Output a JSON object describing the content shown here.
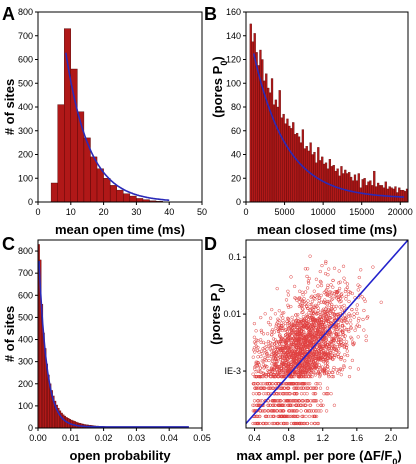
{
  "chart_data": [
    {
      "panel": "A",
      "type": "bar",
      "xlabel": "mean open time (ms)",
      "ylabel": "# of sites",
      "xlim": [
        0,
        50
      ],
      "ylim": [
        0,
        800
      ],
      "xticks": [
        "0",
        "10",
        "20",
        "30",
        "40",
        "50"
      ],
      "yticks": [
        "0",
        "100",
        "200",
        "300",
        "400",
        "500",
        "600",
        "700",
        "800"
      ],
      "bin_width": 2,
      "bins_x": [
        5,
        7,
        9,
        11,
        13,
        15,
        17,
        19,
        21,
        23,
        25,
        27,
        29,
        31,
        33,
        35,
        37
      ],
      "values": [
        80,
        410,
        730,
        560,
        380,
        270,
        190,
        140,
        100,
        70,
        50,
        35,
        25,
        15,
        10,
        5,
        3
      ],
      "fit_curve": {
        "type": "exponential",
        "amplitude": 2080,
        "tau": 7.1,
        "x_start": 8.5,
        "x_end": 40
      }
    },
    {
      "panel": "B",
      "type": "bar",
      "xlabel": "mean closed time (ms)",
      "ylabel": "(pores P",
      "ylabel_sub": "0",
      "ylabel_close": ")",
      "xlim": [
        0,
        21000
      ],
      "ylim": [
        0,
        160
      ],
      "xticks": [
        "0",
        "5000",
        "10000",
        "15000",
        "20000"
      ],
      "yticks": [
        "0",
        "20",
        "40",
        "60",
        "80",
        "100",
        "120",
        "140",
        "160"
      ],
      "bin_width": 250,
      "bin_start": 500,
      "values": [
        150,
        135,
        142,
        126,
        115,
        128,
        120,
        102,
        108,
        96,
        92,
        104,
        82,
        86,
        80,
        94,
        71,
        74,
        66,
        70,
        64,
        62,
        67,
        57,
        58,
        55,
        50,
        61,
        45,
        47,
        43,
        50,
        40,
        42,
        33,
        46,
        35,
        38,
        32,
        33,
        28,
        36,
        30,
        31,
        26,
        28,
        22,
        30,
        24,
        27,
        24,
        25,
        21,
        18,
        23,
        18,
        24,
        12,
        19,
        20,
        14,
        17,
        18,
        14,
        26,
        13,
        16,
        14,
        14,
        12,
        17,
        11,
        13,
        12,
        11,
        13,
        8,
        12,
        10,
        10,
        9,
        11,
        8,
        9,
        10,
        7,
        8,
        6,
        9,
        7,
        8,
        6,
        7,
        8,
        5,
        7,
        6,
        5,
        6,
        5,
        7,
        4,
        6,
        5,
        5,
        4,
        6,
        4,
        5,
        3,
        5,
        4,
        5,
        4,
        3,
        5,
        4,
        3,
        4,
        5,
        3,
        4,
        3,
        5,
        3,
        4,
        7,
        3,
        4,
        3,
        5,
        4,
        8,
        3,
        4,
        3,
        5,
        4,
        3,
        5,
        4,
        6,
        3,
        4,
        9,
        3,
        4,
        3,
        5,
        4,
        3,
        5,
        4,
        3,
        5,
        3,
        4,
        3,
        5,
        3,
        4,
        3,
        5,
        4,
        3,
        5,
        4,
        3,
        5,
        3,
        4,
        3,
        5,
        4,
        3,
        5,
        4,
        3,
        5,
        3,
        4,
        3,
        5,
        4,
        3,
        5,
        4,
        3,
        5,
        3,
        4,
        3,
        5,
        4,
        3,
        5,
        4,
        3,
        5,
        3,
        4,
        3,
        5,
        4,
        3,
        5,
        4,
        3,
        5,
        3,
        4,
        3,
        5,
        4,
        3,
        5,
        4,
        3,
        5,
        3,
        4,
        3,
        5,
        4,
        3,
        5,
        4,
        3,
        5,
        3,
        4,
        3,
        5,
        4,
        3,
        5,
        4,
        3,
        5,
        3,
        4,
        3,
        5,
        4,
        3,
        5
      ],
      "fit_curve": {
        "type": "exponential",
        "amplitude": 155,
        "tau": 4200,
        "offset": 3,
        "x_start": 1000,
        "x_end": 20500
      }
    },
    {
      "panel": "C",
      "type": "bar",
      "xlabel": "open probability",
      "ylabel": "# of sites",
      "xlim": [
        0,
        0.05
      ],
      "ylim": [
        0,
        850
      ],
      "xticks": [
        "0.00",
        "0.01",
        "0.02",
        "0.03",
        "0.04",
        "0.05"
      ],
      "yticks": [
        "0",
        "100",
        "200",
        "300",
        "400",
        "500",
        "600",
        "700",
        "800"
      ],
      "bin_width": 0.0005,
      "bin_start": 0,
      "values": [
        830,
        760,
        560,
        430,
        360,
        290,
        240,
        200,
        170,
        145,
        122,
        104,
        90,
        78,
        68,
        60,
        54,
        48,
        44,
        40,
        36,
        33,
        30,
        27,
        24,
        22,
        20,
        18,
        16,
        15,
        14,
        13,
        12,
        11,
        10,
        9,
        9,
        8,
        8,
        7,
        7,
        6,
        6,
        6,
        5,
        5,
        5,
        4,
        4,
        4,
        4,
        3,
        3,
        3,
        3,
        3,
        3,
        2,
        2,
        2,
        2,
        2,
        2,
        2,
        2,
        2,
        2,
        2,
        1,
        1,
        1,
        1,
        1,
        1,
        1,
        1,
        1,
        1,
        1,
        1,
        1,
        1,
        1,
        1,
        1,
        1,
        1,
        1,
        1,
        1
      ],
      "fit_curve": {
        "type": "exponential",
        "amplitude": 850,
        "tau": 0.0024,
        "offset": 5,
        "x_start": 0.0003,
        "x_end": 0.046
      }
    },
    {
      "panel": "D",
      "type": "scatter",
      "xlabel": "max  ampl. per pore (",
      "xlabel_delta": "ΔF/F",
      "xlabel_sub": "0",
      "xlabel_close": ")",
      "ylabel": "(pores P",
      "ylabel_sub": "0",
      "ylabel_close": ")",
      "log_y": true,
      "xlim": [
        0.3,
        2.2
      ],
      "ylim": [
        0.0001,
        0.2
      ],
      "xticks": [
        "0.4",
        "0.8",
        "1.2",
        "1.6",
        "2.0"
      ],
      "yticks": [
        "IE-3",
        "0.01",
        "0.1"
      ],
      "n_points": 2400,
      "fit_line": {
        "x": [
          0.3,
          2.2
        ],
        "y": [
          0.00012,
          0.2
        ]
      },
      "point_color": "#e04040",
      "line_color": "#2222cc"
    }
  ],
  "panel_labels": [
    "A",
    "B",
    "C",
    "D"
  ],
  "colors": {
    "bar": "#b01818",
    "bar_edge": "#4a0000",
    "fit": "#2a2ab8"
  }
}
